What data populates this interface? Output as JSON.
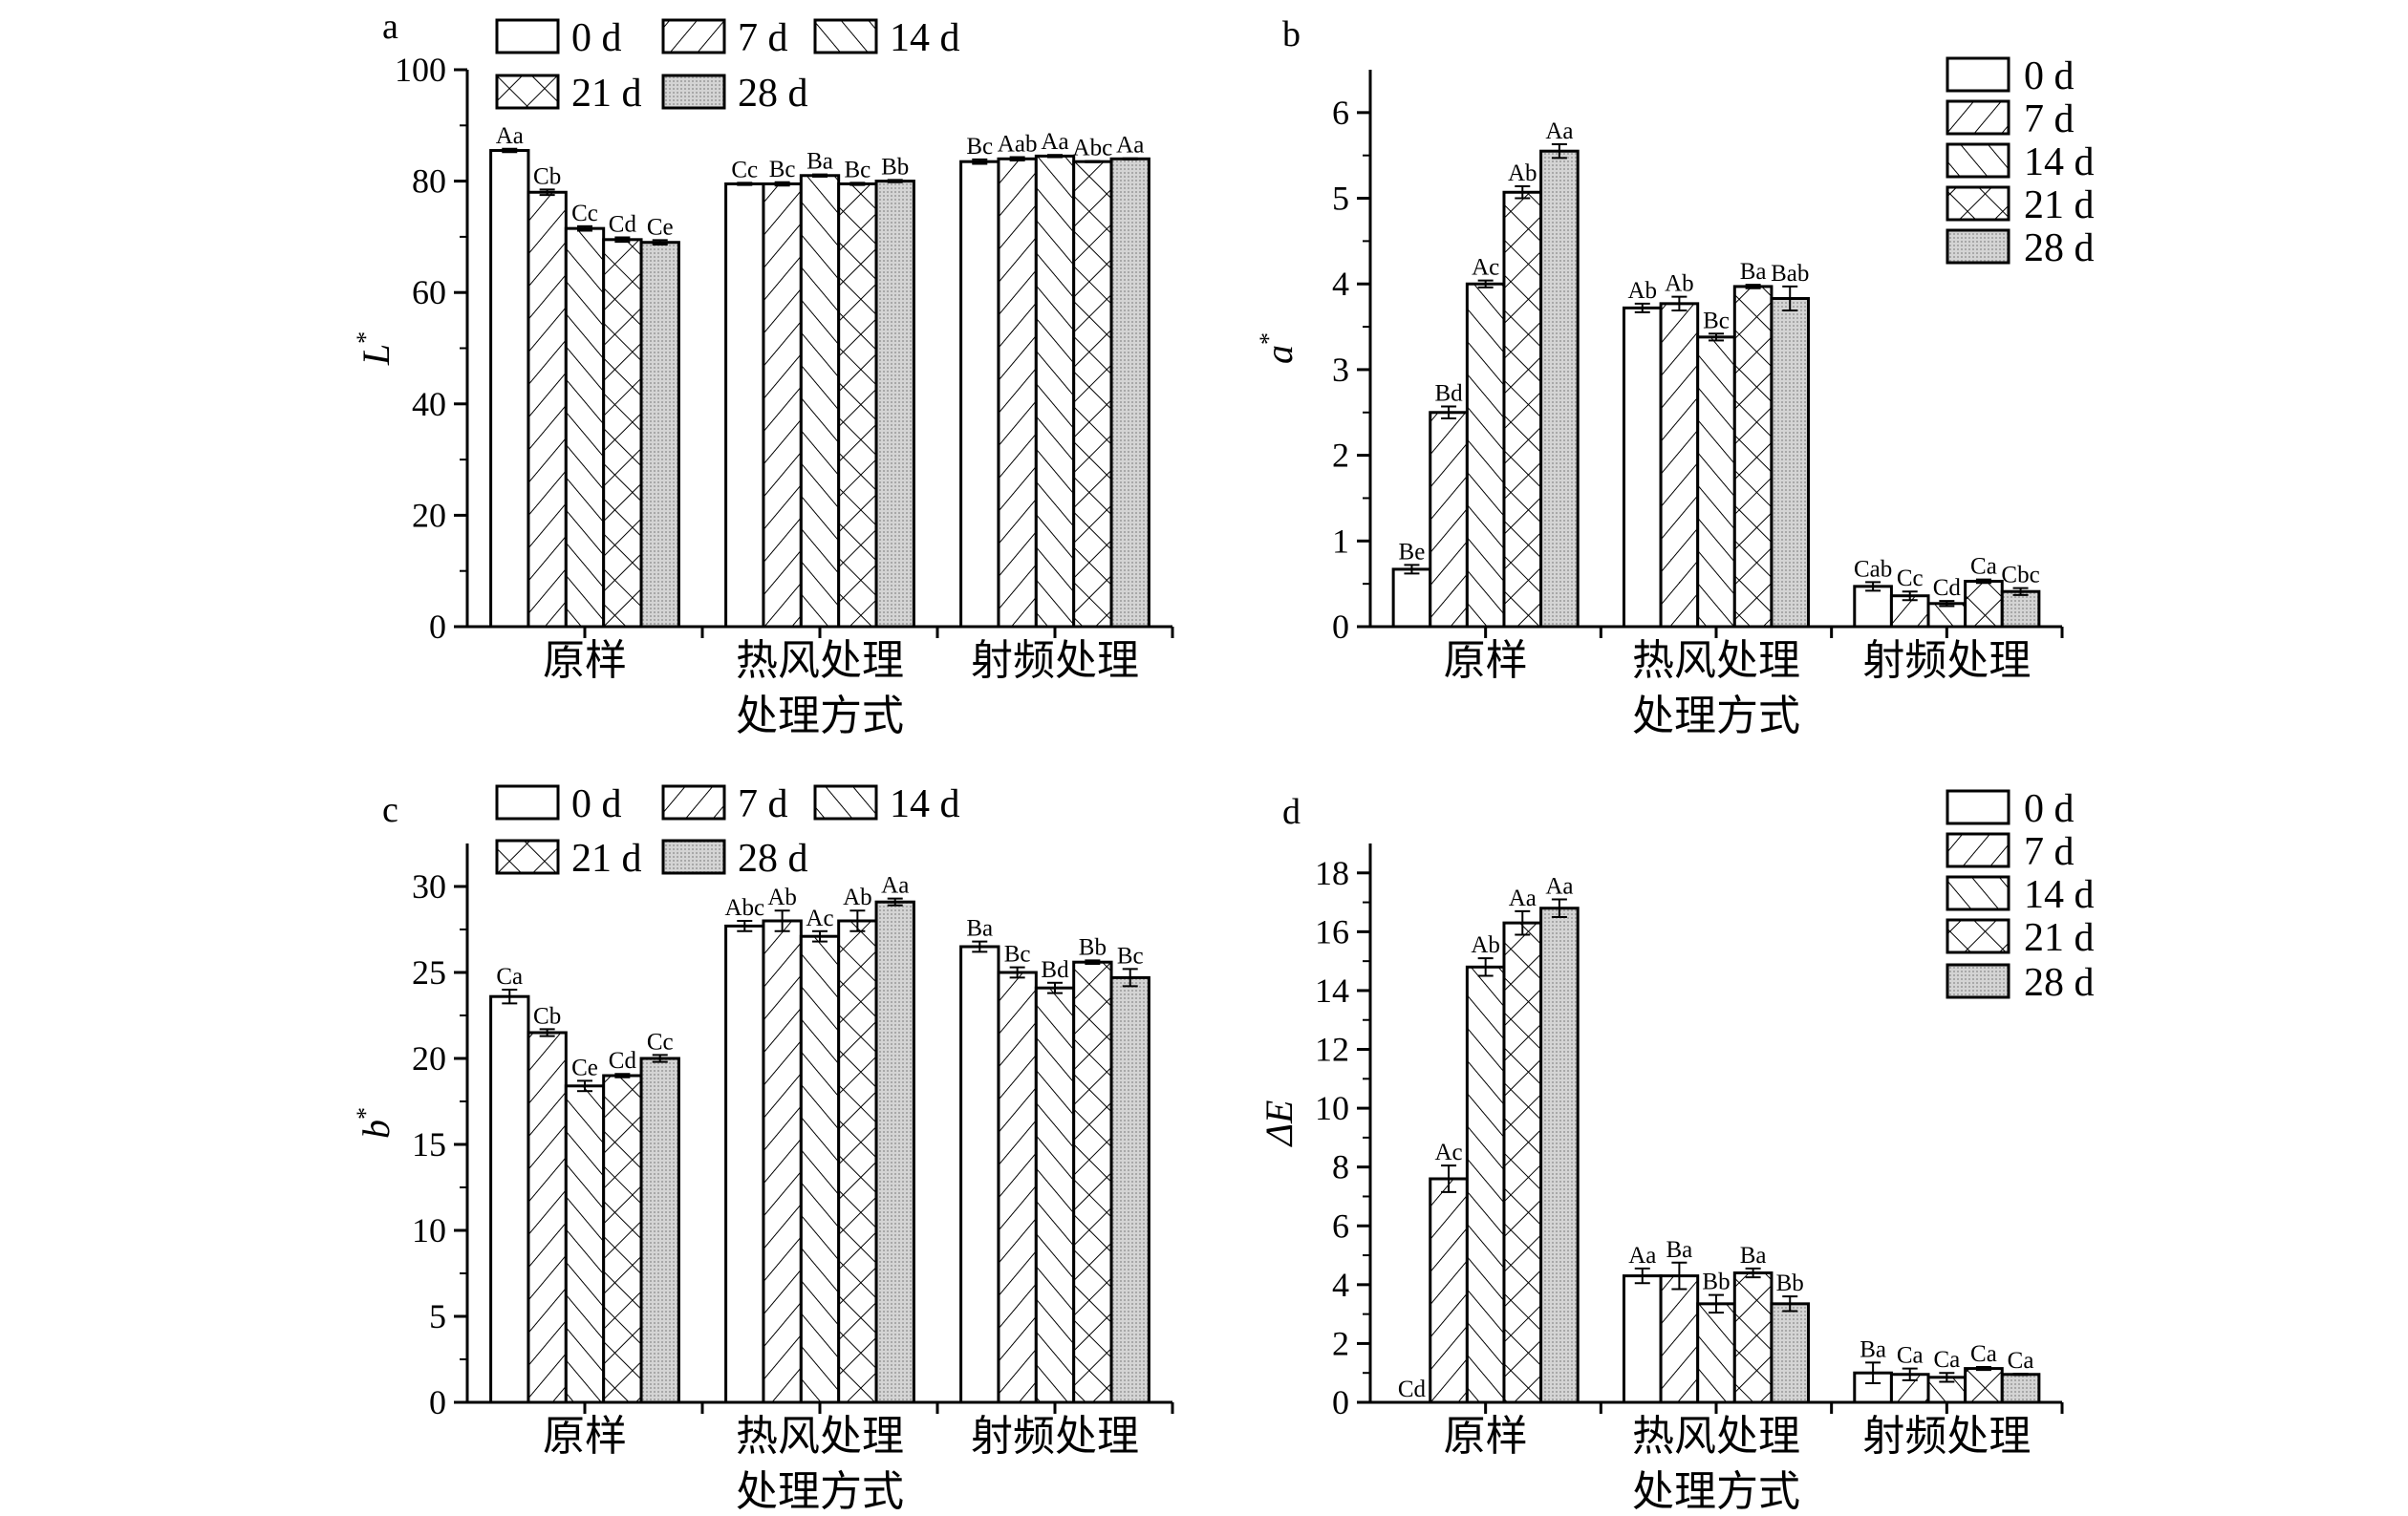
{
  "legend_labels": [
    "0 d",
    "7 d",
    "14 d",
    "21 d",
    "28 d"
  ],
  "colors": {
    "axis": "#000000",
    "bar_fill": "#ffffff",
    "dot_fill": "#c8c8c8"
  },
  "chart_data": [
    {
      "panel": "a",
      "type": "bar",
      "xlabel": "处理方式",
      "ylabel_main": "L",
      "ylabel_sup": "*",
      "categories": [
        "原样",
        "热风处理",
        "射频处理"
      ],
      "ylim": [
        0,
        100
      ],
      "yticks": [
        0,
        20,
        40,
        60,
        80,
        100
      ],
      "legend_position": "top-left, outside",
      "series": [
        {
          "name": "0 d",
          "values": [
            85.5,
            79.5,
            83.5
          ],
          "errors": [
            0.3,
            0.2,
            0.4
          ],
          "labels": [
            "Aa",
            "Cc",
            "Bc"
          ]
        },
        {
          "name": "7 d",
          "values": [
            78.0,
            79.5,
            84.0
          ],
          "errors": [
            0.5,
            0.3,
            0.3
          ],
          "labels": [
            "Cb",
            "Bc",
            "Aab"
          ]
        },
        {
          "name": "14 d",
          "values": [
            71.5,
            81.0,
            84.5
          ],
          "errors": [
            0.4,
            0.2,
            0.2
          ],
          "labels": [
            "Cc",
            "Ba",
            "Aa"
          ]
        },
        {
          "name": "21 d",
          "values": [
            69.5,
            79.5,
            83.5
          ],
          "errors": [
            0.4,
            0.2,
            0.1
          ],
          "labels": [
            "Cd",
            "Bc",
            "Abc"
          ]
        },
        {
          "name": "28 d",
          "values": [
            69.0,
            80.0,
            84.0
          ],
          "errors": [
            0.4,
            0.2,
            0.1
          ],
          "labels": [
            "Ce",
            "Bb",
            "Aa"
          ]
        }
      ]
    },
    {
      "panel": "b",
      "type": "bar",
      "xlabel": "处理方式",
      "ylabel_main": "a",
      "ylabel_sup": "*",
      "categories": [
        "原样",
        "热风处理",
        "射频处理"
      ],
      "ylim": [
        0,
        6.5
      ],
      "yticks": [
        0,
        1,
        2,
        3,
        4,
        5,
        6
      ],
      "legend_position": "top-right",
      "series": [
        {
          "name": "0 d",
          "values": [
            0.67,
            3.72,
            0.47
          ],
          "errors": [
            0.05,
            0.05,
            0.05
          ],
          "labels": [
            "Be",
            "Ab",
            "Cab"
          ]
        },
        {
          "name": "7 d",
          "values": [
            2.5,
            3.77,
            0.36
          ],
          "errors": [
            0.07,
            0.08,
            0.05
          ],
          "labels": [
            "Bd",
            "Ab",
            "Cc"
          ]
        },
        {
          "name": "14 d",
          "values": [
            4.0,
            3.38,
            0.27
          ],
          "errors": [
            0.04,
            0.04,
            0.03
          ],
          "labels": [
            "Ac",
            "Bc",
            "Cd"
          ]
        },
        {
          "name": "21 d",
          "values": [
            5.07,
            3.97,
            0.53
          ],
          "errors": [
            0.07,
            0.02,
            0.02
          ],
          "labels": [
            "Ab",
            "Ba",
            "Ca"
          ]
        },
        {
          "name": "28 d",
          "values": [
            5.55,
            3.83,
            0.41
          ],
          "errors": [
            0.08,
            0.14,
            0.04
          ],
          "labels": [
            "Aa",
            "Bab",
            "Cbc"
          ]
        }
      ]
    },
    {
      "panel": "c",
      "type": "bar",
      "xlabel": "处理方式",
      "ylabel_main": "b",
      "ylabel_sup": "*",
      "categories": [
        "原样",
        "热风处理",
        "射频处理"
      ],
      "ylim": [
        0,
        32.5
      ],
      "yticks": [
        0,
        5,
        10,
        15,
        20,
        25,
        30
      ],
      "legend_position": "top-left, outside",
      "series": [
        {
          "name": "0 d",
          "values": [
            23.6,
            27.7,
            26.5
          ],
          "errors": [
            0.4,
            0.3,
            0.3
          ],
          "labels": [
            "Ca",
            "Abc",
            "Ba"
          ]
        },
        {
          "name": "7 d",
          "values": [
            21.5,
            28.0,
            25.0
          ],
          "errors": [
            0.2,
            0.6,
            0.3
          ],
          "labels": [
            "Cb",
            "Ab",
            "Bc"
          ]
        },
        {
          "name": "14 d",
          "values": [
            18.4,
            27.1,
            24.1
          ],
          "errors": [
            0.3,
            0.3,
            0.3
          ],
          "labels": [
            "Ce",
            "Ac",
            "Bd"
          ]
        },
        {
          "name": "21 d",
          "values": [
            19.0,
            28.0,
            25.6
          ],
          "errors": [
            0.1,
            0.6,
            0.1
          ],
          "labels": [
            "Cd",
            "Ab",
            "Bb"
          ]
        },
        {
          "name": "28 d",
          "values": [
            20.0,
            29.1,
            24.7
          ],
          "errors": [
            0.2,
            0.2,
            0.5
          ],
          "labels": [
            "Cc",
            "Aa",
            "Bc"
          ]
        }
      ]
    },
    {
      "panel": "d",
      "type": "bar",
      "xlabel": "处理方式",
      "ylabel_main": "ΔE",
      "ylabel_sup": "",
      "categories": [
        "原样",
        "热风处理",
        "射频处理"
      ],
      "ylim": [
        0,
        19
      ],
      "yticks": [
        0,
        2,
        4,
        6,
        8,
        10,
        12,
        14,
        16,
        18
      ],
      "legend_position": "top-right",
      "series": [
        {
          "name": "0 d",
          "values": [
            0,
            4.3,
            1.0
          ],
          "errors": [
            0,
            0.25,
            0.35
          ],
          "labels": [
            "Cd",
            "Aa",
            "Ba"
          ]
        },
        {
          "name": "7 d",
          "values": [
            7.6,
            4.3,
            0.95
          ],
          "errors": [
            0.45,
            0.45,
            0.2
          ],
          "labels": [
            "Ac",
            "Ba",
            "Ca"
          ]
        },
        {
          "name": "14 d",
          "values": [
            14.8,
            3.35,
            0.85
          ],
          "errors": [
            0.3,
            0.3,
            0.15
          ],
          "labels": [
            "Ab",
            "Bb",
            "Ca"
          ]
        },
        {
          "name": "21 d",
          "values": [
            16.3,
            4.4,
            1.15
          ],
          "errors": [
            0.4,
            0.15,
            0.05
          ],
          "labels": [
            "Aa",
            "Ba",
            "Ca"
          ]
        },
        {
          "name": "28 d",
          "values": [
            16.8,
            3.35,
            0.95
          ],
          "errors": [
            0.3,
            0.25,
            0.02
          ],
          "labels": [
            "Aa",
            "Bb",
            "Ca"
          ]
        }
      ]
    }
  ]
}
